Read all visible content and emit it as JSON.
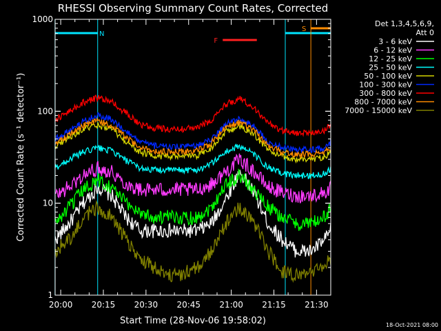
{
  "chart_data": {
    "type": "line",
    "title": "RHESSI Observing Summary Count Rates, Corrected",
    "xlabel": "Start Time (28-Nov-06 19:58:02)",
    "ylabel": "Corrected Count Rate (s⁻¹ detector⁻¹)",
    "yscale": "log",
    "ylim": [
      1,
      1000
    ],
    "xlim": [
      "19:58:02",
      "21:35:00"
    ],
    "x_ticks": [
      "20:00",
      "20:15",
      "20:30",
      "20:45",
      "21:00",
      "21:15",
      "21:30"
    ],
    "y_ticks": [
      "1",
      "10",
      "100",
      "1000"
    ],
    "legend_header": [
      "Det 1,3,4,5,6,9,",
      "Att 0"
    ],
    "legend_position": "right",
    "timestamp": "18-Oct-2021 08:00",
    "flags": [
      {
        "label": "N",
        "color": "#00e5ff",
        "segments": [
          [
            "19:58",
            "20:13"
          ],
          [
            "21:19",
            "21:35"
          ]
        ]
      },
      {
        "label": "F",
        "color": "#ff2020",
        "segments": [
          [
            "20:57",
            "21:09"
          ]
        ]
      },
      {
        "label": "S",
        "color": "#ff8c00",
        "segments": [
          [
            "21:28",
            "21:35"
          ]
        ]
      }
    ],
    "x": [
      "19:58",
      "20:03",
      "20:08",
      "20:13",
      "20:18",
      "20:23",
      "20:28",
      "20:33",
      "20:38",
      "20:43",
      "20:48",
      "20:53",
      "20:58",
      "21:03",
      "21:08",
      "21:13",
      "21:18",
      "21:23",
      "21:28",
      "21:33",
      "21:35"
    ],
    "series": [
      {
        "name": "3 - 6 keV",
        "color": "#ffffff",
        "values": [
          4,
          6,
          10,
          15,
          12,
          7,
          5,
          5,
          5,
          5,
          5,
          6,
          11,
          22,
          13,
          6,
          4,
          3,
          3,
          4,
          5
        ]
      },
      {
        "name": "6 - 12 keV",
        "color": "#ff3cff",
        "values": [
          12,
          15,
          20,
          24,
          22,
          16,
          14,
          14,
          14,
          14,
          14,
          16,
          22,
          30,
          22,
          15,
          13,
          12,
          12,
          13,
          15
        ]
      },
      {
        "name": "12 - 25 keV",
        "color": "#00ff00",
        "values": [
          6,
          9,
          14,
          18,
          15,
          10,
          8,
          7,
          7,
          7,
          7,
          9,
          16,
          20,
          14,
          9,
          7,
          6,
          6,
          7,
          9
        ]
      },
      {
        "name": "25 - 50 keV",
        "color": "#00ffff",
        "values": [
          24,
          30,
          36,
          40,
          37,
          29,
          24,
          23,
          23,
          23,
          23,
          27,
          36,
          42,
          34,
          24,
          21,
          20,
          20,
          21,
          24
        ]
      },
      {
        "name": "50 - 100 keV",
        "color": "#d6d600",
        "values": [
          42,
          52,
          64,
          70,
          64,
          46,
          36,
          33,
          32,
          32,
          33,
          40,
          60,
          68,
          56,
          38,
          32,
          30,
          30,
          32,
          36
        ]
      },
      {
        "name": "100 - 300 keV",
        "color": "#0028ff",
        "values": [
          50,
          62,
          78,
          90,
          82,
          60,
          46,
          42,
          41,
          41,
          42,
          50,
          72,
          84,
          68,
          46,
          40,
          38,
          38,
          40,
          46
        ]
      },
      {
        "name": "300 - 800 keV",
        "color": "#ff0000",
        "values": [
          80,
          100,
          125,
          140,
          126,
          95,
          72,
          66,
          64,
          64,
          66,
          80,
          118,
          138,
          110,
          74,
          62,
          58,
          58,
          62,
          72
        ]
      },
      {
        "name": "800 - 7000 keV",
        "color": "#ff8c00",
        "values": [
          45,
          56,
          70,
          78,
          70,
          52,
          40,
          37,
          36,
          36,
          37,
          45,
          66,
          76,
          62,
          42,
          36,
          34,
          34,
          36,
          40
        ]
      },
      {
        "name": "7000 - 15000 keV",
        "color": "#808000",
        "values": [
          3,
          4,
          7,
          9,
          7,
          4,
          2.5,
          2,
          1.6,
          1.7,
          2,
          3,
          6,
          9,
          6,
          3,
          1.8,
          1.6,
          1.8,
          2.2,
          2.5
        ]
      }
    ]
  }
}
